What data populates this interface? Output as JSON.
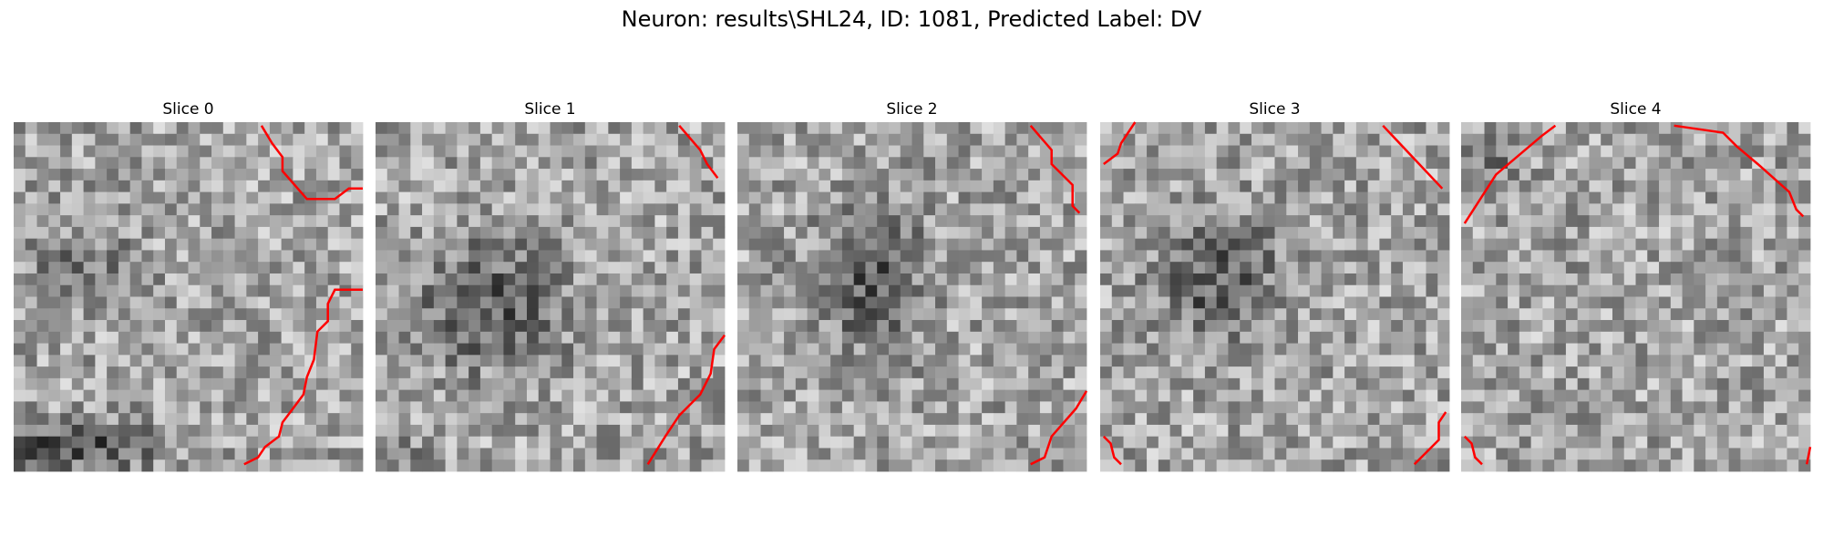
{
  "title": "Neuron: results\\SHL24, ID: 1081, Predicted Label: DV",
  "panels": [
    {
      "title": "Slice 0"
    },
    {
      "title": "Slice 1"
    },
    {
      "title": "Slice 2"
    },
    {
      "title": "Slice 3"
    },
    {
      "title": "Slice 4"
    }
  ]
}
